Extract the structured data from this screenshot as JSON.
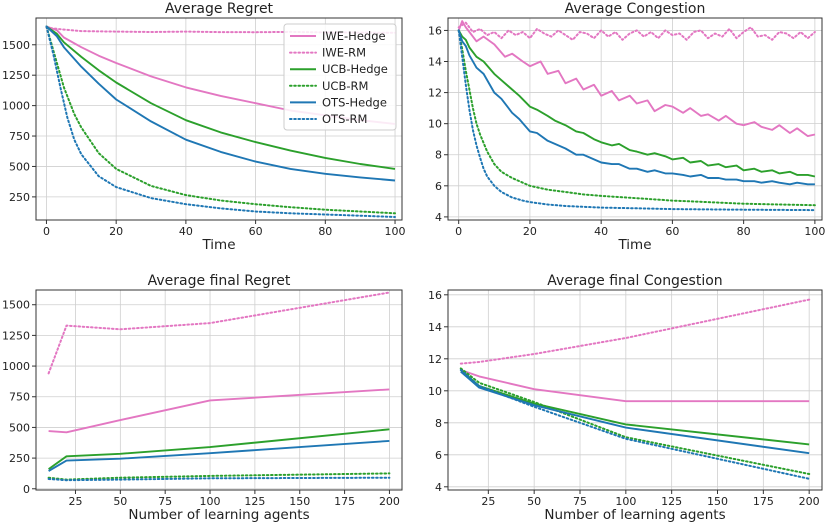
{
  "colors": {
    "IWE": "#e377c2",
    "UCB": "#2ca02c",
    "OTS": "#1f77b4"
  },
  "chart_data": [
    {
      "type": "line",
      "title": "Average Regret",
      "xlabel": "Time",
      "ylabel": "",
      "xlim": [
        -3,
        102
      ],
      "ylim": [
        60,
        1720
      ],
      "xticks": [
        0,
        20,
        40,
        60,
        80,
        100
      ],
      "yticks": [
        250,
        500,
        750,
        1000,
        1250,
        1500
      ],
      "legend": "top-right",
      "series": [
        {
          "name": "IWE-Hedge",
          "group": "IWE",
          "style": "solid",
          "x": [
            0,
            3,
            5,
            10,
            15,
            20,
            30,
            40,
            50,
            60,
            70,
            80,
            90,
            100
          ],
          "y": [
            1650,
            1620,
            1560,
            1480,
            1410,
            1350,
            1240,
            1150,
            1080,
            1020,
            960,
            920,
            880,
            850
          ]
        },
        {
          "name": "IWE-RM",
          "group": "IWE",
          "style": "dotted",
          "x": [
            0,
            5,
            10,
            20,
            30,
            40,
            50,
            60,
            70,
            80,
            90,
            100
          ],
          "y": [
            1640,
            1625,
            1612,
            1608,
            1605,
            1608,
            1604,
            1603,
            1606,
            1602,
            1600,
            1598
          ]
        },
        {
          "name": "UCB-Hedge",
          "group": "UCB",
          "style": "solid",
          "x": [
            0,
            3,
            5,
            10,
            15,
            20,
            30,
            40,
            50,
            60,
            70,
            80,
            90,
            100
          ],
          "y": [
            1650,
            1590,
            1520,
            1400,
            1290,
            1190,
            1020,
            880,
            780,
            700,
            630,
            570,
            520,
            480
          ]
        },
        {
          "name": "UCB-RM",
          "group": "UCB",
          "style": "dotted",
          "x": [
            0,
            3,
            5,
            8,
            10,
            15,
            20,
            30,
            40,
            50,
            60,
            70,
            80,
            90,
            100
          ],
          "y": [
            1650,
            1350,
            1150,
            930,
            820,
            610,
            480,
            340,
            265,
            220,
            190,
            165,
            145,
            130,
            115
          ]
        },
        {
          "name": "OTS-Hedge",
          "group": "OTS",
          "style": "solid",
          "x": [
            0,
            3,
            5,
            10,
            15,
            20,
            30,
            40,
            50,
            60,
            70,
            80,
            90,
            100
          ],
          "y": [
            1650,
            1570,
            1480,
            1320,
            1180,
            1050,
            870,
            720,
            620,
            540,
            480,
            440,
            410,
            385
          ]
        },
        {
          "name": "OTS-RM",
          "group": "OTS",
          "style": "dotted",
          "x": [
            0,
            2,
            4,
            6,
            8,
            10,
            15,
            20,
            30,
            40,
            50,
            60,
            70,
            80,
            90,
            100
          ],
          "y": [
            1650,
            1420,
            1150,
            900,
            720,
            600,
            420,
            330,
            240,
            190,
            155,
            130,
            115,
            105,
            95,
            85
          ]
        }
      ]
    },
    {
      "type": "line",
      "title": "Average Congestion",
      "xlabel": "Time",
      "ylabel": "",
      "xlim": [
        -3,
        102
      ],
      "ylim": [
        3.8,
        16.8
      ],
      "xticks": [
        0,
        20,
        40,
        60,
        80,
        100
      ],
      "yticks": [
        4,
        6,
        8,
        10,
        12,
        14,
        16
      ],
      "series": [
        {
          "name": "IWE-Hedge",
          "group": "IWE",
          "style": "solid",
          "x": [
            0,
            1,
            2,
            3,
            5,
            7,
            10,
            13,
            15,
            18,
            20,
            23,
            25,
            28,
            30,
            33,
            35,
            38,
            40,
            43,
            45,
            48,
            50,
            53,
            55,
            58,
            60,
            63,
            65,
            68,
            70,
            73,
            75,
            78,
            80,
            83,
            85,
            88,
            90,
            93,
            95,
            98,
            100
          ],
          "y": [
            16.0,
            16.6,
            16.2,
            15.9,
            15.3,
            15.6,
            15.1,
            14.3,
            14.5,
            14.0,
            13.7,
            14.0,
            13.2,
            13.4,
            12.6,
            12.9,
            12.2,
            12.5,
            11.8,
            12.1,
            11.5,
            11.8,
            11.3,
            11.5,
            10.8,
            11.2,
            11.1,
            10.7,
            11.0,
            10.5,
            10.6,
            10.2,
            10.5,
            10.0,
            9.9,
            10.1,
            9.8,
            9.6,
            9.9,
            9.4,
            9.7,
            9.2,
            9.3
          ]
        },
        {
          "name": "IWE-RM",
          "group": "IWE",
          "style": "dotted",
          "x": [
            0,
            2,
            4,
            6,
            8,
            10,
            12,
            14,
            16,
            18,
            20,
            22,
            24,
            26,
            28,
            30,
            32,
            34,
            36,
            38,
            40,
            42,
            44,
            46,
            48,
            50,
            52,
            54,
            56,
            58,
            60,
            62,
            64,
            66,
            68,
            70,
            72,
            74,
            76,
            78,
            80,
            82,
            84,
            86,
            88,
            90,
            92,
            94,
            96,
            98,
            100
          ],
          "y": [
            16.2,
            16.5,
            15.9,
            16.1,
            15.7,
            15.9,
            15.5,
            16.0,
            15.7,
            15.9,
            15.5,
            16.1,
            15.8,
            15.6,
            16.0,
            15.7,
            15.4,
            15.9,
            15.8,
            15.5,
            16.0,
            15.6,
            15.9,
            15.4,
            15.8,
            16.0,
            15.6,
            15.9,
            15.5,
            16.0,
            15.7,
            15.8,
            15.4,
            15.9,
            16.0,
            15.5,
            15.8,
            15.6,
            16.1,
            15.5,
            15.9,
            16.2,
            15.6,
            15.7,
            15.4,
            15.9,
            15.8,
            15.5,
            15.9,
            15.5,
            15.9
          ]
        },
        {
          "name": "UCB-Hedge",
          "group": "UCB",
          "style": "solid",
          "x": [
            0,
            1,
            2,
            3,
            5,
            7,
            10,
            12,
            15,
            17,
            20,
            22,
            25,
            27,
            30,
            33,
            35,
            38,
            40,
            43,
            45,
            48,
            50,
            53,
            55,
            58,
            60,
            63,
            65,
            68,
            70,
            73,
            75,
            78,
            80,
            83,
            85,
            88,
            90,
            93,
            95,
            98,
            100
          ],
          "y": [
            16.0,
            15.6,
            15.4,
            14.9,
            14.3,
            14.0,
            13.2,
            12.8,
            12.2,
            11.8,
            11.1,
            10.9,
            10.5,
            10.2,
            9.9,
            9.5,
            9.4,
            9.0,
            8.8,
            8.6,
            8.7,
            8.3,
            8.2,
            8.0,
            8.1,
            7.9,
            7.7,
            7.8,
            7.5,
            7.6,
            7.3,
            7.4,
            7.2,
            7.3,
            7.0,
            7.1,
            6.9,
            7.0,
            6.8,
            6.9,
            6.7,
            6.7,
            6.6
          ]
        },
        {
          "name": "UCB-RM",
          "group": "UCB",
          "style": "dotted",
          "x": [
            0,
            1,
            2,
            3,
            4,
            5,
            6,
            8,
            10,
            12,
            15,
            18,
            20,
            25,
            30,
            35,
            40,
            50,
            60,
            70,
            80,
            90,
            100
          ],
          "y": [
            16.0,
            14.8,
            13.4,
            12.2,
            11.0,
            10.0,
            9.3,
            8.2,
            7.4,
            6.9,
            6.5,
            6.2,
            6.0,
            5.75,
            5.6,
            5.45,
            5.35,
            5.2,
            5.05,
            4.95,
            4.85,
            4.8,
            4.75
          ]
        },
        {
          "name": "OTS-Hedge",
          "group": "OTS",
          "style": "solid",
          "x": [
            0,
            1,
            2,
            3,
            5,
            7,
            10,
            12,
            15,
            17,
            20,
            22,
            25,
            27,
            30,
            33,
            35,
            38,
            40,
            43,
            45,
            48,
            50,
            53,
            55,
            58,
            60,
            63,
            65,
            68,
            70,
            73,
            75,
            78,
            80,
            83,
            85,
            88,
            90,
            93,
            95,
            98,
            100
          ],
          "y": [
            16.0,
            15.3,
            15.0,
            14.4,
            13.6,
            13.2,
            12.0,
            11.6,
            10.7,
            10.3,
            9.5,
            9.4,
            8.9,
            8.7,
            8.4,
            8.0,
            8.0,
            7.7,
            7.5,
            7.4,
            7.4,
            7.1,
            7.1,
            6.9,
            7.0,
            6.8,
            6.8,
            6.7,
            6.6,
            6.7,
            6.5,
            6.5,
            6.4,
            6.4,
            6.3,
            6.3,
            6.2,
            6.3,
            6.2,
            6.1,
            6.2,
            6.1,
            6.1
          ]
        },
        {
          "name": "OTS-RM",
          "group": "OTS",
          "style": "dotted",
          "x": [
            0,
            1,
            2,
            3,
            4,
            5,
            6,
            7,
            8,
            10,
            12,
            15,
            18,
            20,
            25,
            30,
            40,
            50,
            60,
            70,
            80,
            90,
            100
          ],
          "y": [
            16.0,
            14.3,
            12.5,
            10.9,
            9.6,
            8.6,
            7.8,
            7.1,
            6.6,
            6.0,
            5.6,
            5.25,
            5.05,
            4.95,
            4.8,
            4.7,
            4.6,
            4.55,
            4.5,
            4.48,
            4.46,
            4.45,
            4.44
          ]
        }
      ]
    },
    {
      "type": "line",
      "title": "Average final Regret",
      "xlabel": "Number of learning agents",
      "ylabel": "",
      "xlim": [
        3,
        207
      ],
      "ylim": [
        -10,
        1620
      ],
      "xticks": [
        25,
        50,
        75,
        100,
        125,
        150,
        175,
        200
      ],
      "yticks": [
        0,
        250,
        500,
        750,
        1000,
        1250,
        1500
      ],
      "series": [
        {
          "name": "IWE-Hedge",
          "group": "IWE",
          "style": "solid",
          "x": [
            10,
            20,
            50,
            100,
            200
          ],
          "y": [
            470,
            460,
            560,
            720,
            810
          ]
        },
        {
          "name": "IWE-RM",
          "group": "IWE",
          "style": "dotted",
          "x": [
            10,
            20,
            50,
            100,
            200
          ],
          "y": [
            940,
            1330,
            1300,
            1350,
            1600
          ]
        },
        {
          "name": "UCB-Hedge",
          "group": "UCB",
          "style": "solid",
          "x": [
            10,
            20,
            50,
            100,
            200
          ],
          "y": [
            160,
            265,
            285,
            340,
            485
          ]
        },
        {
          "name": "UCB-RM",
          "group": "UCB",
          "style": "dotted",
          "x": [
            10,
            20,
            50,
            100,
            200
          ],
          "y": [
            90,
            75,
            90,
            105,
            125
          ]
        },
        {
          "name": "OTS-Hedge",
          "group": "OTS",
          "style": "solid",
          "x": [
            10,
            20,
            50,
            100,
            200
          ],
          "y": [
            145,
            230,
            245,
            290,
            390
          ]
        },
        {
          "name": "OTS-RM",
          "group": "OTS",
          "style": "dotted",
          "x": [
            10,
            20,
            50,
            100,
            200
          ],
          "y": [
            80,
            70,
            75,
            85,
            90
          ]
        }
      ]
    },
    {
      "type": "line",
      "title": "Average final Congestion",
      "xlabel": "Number of learning agents",
      "ylabel": "",
      "xlim": [
        3,
        207
      ],
      "ylim": [
        3.8,
        16.3
      ],
      "xticks": [
        25,
        50,
        75,
        100,
        125,
        150,
        175,
        200
      ],
      "yticks": [
        4,
        6,
        8,
        10,
        12,
        14,
        16
      ],
      "series": [
        {
          "name": "IWE-Hedge",
          "group": "IWE",
          "style": "solid",
          "x": [
            10,
            20,
            50,
            100,
            200
          ],
          "y": [
            11.3,
            10.9,
            10.1,
            9.35,
            9.35
          ]
        },
        {
          "name": "IWE-RM",
          "group": "IWE",
          "style": "dotted",
          "x": [
            10,
            20,
            50,
            100,
            200
          ],
          "y": [
            11.7,
            11.8,
            12.3,
            13.3,
            15.7
          ]
        },
        {
          "name": "UCB-Hedge",
          "group": "UCB",
          "style": "solid",
          "x": [
            10,
            20,
            50,
            100,
            200
          ],
          "y": [
            11.3,
            10.3,
            9.2,
            7.9,
            6.65
          ]
        },
        {
          "name": "UCB-RM",
          "group": "UCB",
          "style": "dotted",
          "x": [
            10,
            20,
            50,
            100,
            200
          ],
          "y": [
            11.4,
            10.5,
            9.3,
            7.1,
            4.8
          ]
        },
        {
          "name": "OTS-Hedge",
          "group": "OTS",
          "style": "solid",
          "x": [
            10,
            20,
            50,
            100,
            200
          ],
          "y": [
            11.2,
            10.2,
            9.1,
            7.7,
            6.1
          ]
        },
        {
          "name": "OTS-RM",
          "group": "OTS",
          "style": "dotted",
          "x": [
            10,
            20,
            50,
            100,
            200
          ],
          "y": [
            11.3,
            10.3,
            9.0,
            7.0,
            4.5
          ]
        }
      ]
    }
  ]
}
